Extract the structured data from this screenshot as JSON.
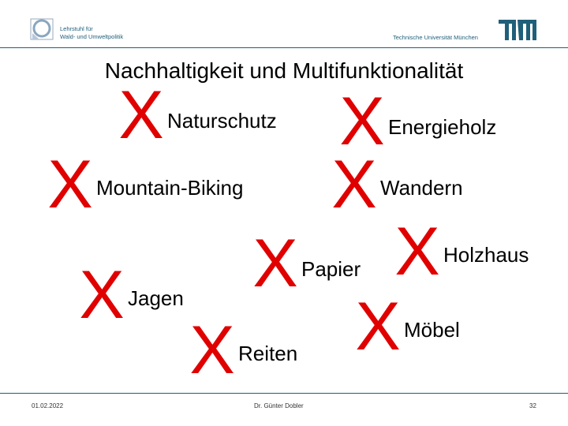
{
  "header": {
    "chair_line1": "Lehrstuhl für",
    "chair_line2": "Wald- und Umweltpolitik",
    "university": "Technische Universität München",
    "logo": "TUM"
  },
  "title": "Nachhaltigkeit und Multifunktionalität",
  "items": [
    {
      "label": "Naturschutz",
      "mark": "X"
    },
    {
      "label": "Energieholz",
      "mark": "X"
    },
    {
      "label": "Mountain-Biking",
      "mark": "X"
    },
    {
      "label": "Wandern",
      "mark": "X"
    },
    {
      "label": "Holzhaus",
      "mark": "X"
    },
    {
      "label": "Papier",
      "mark": "X"
    },
    {
      "label": "Jagen",
      "mark": "X"
    },
    {
      "label": "Möbel",
      "mark": "X"
    },
    {
      "label": "Reiten",
      "mark": "X"
    }
  ],
  "colors": {
    "accent": "#1f5f7a",
    "mark": "#e00000"
  },
  "footer": {
    "date": "01.02.2022",
    "author": "Dr. Günter Dobler",
    "page": "32"
  }
}
